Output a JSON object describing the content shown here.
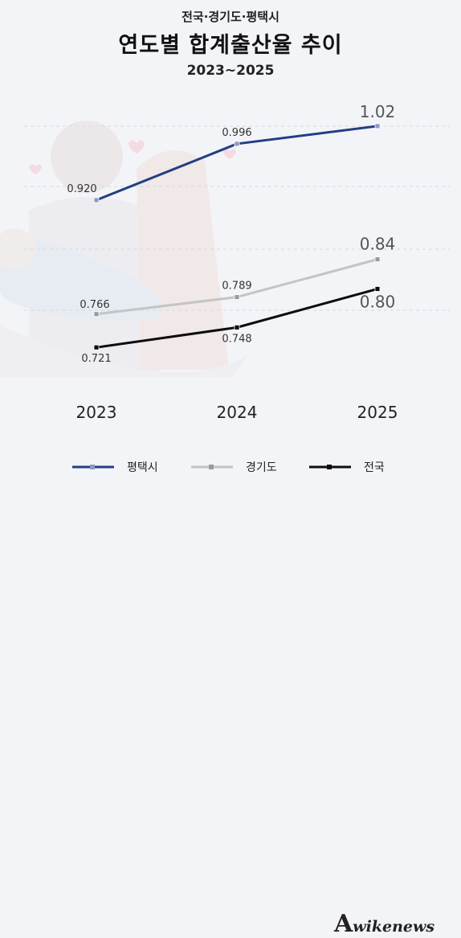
{
  "header": {
    "supertitle": "전국·경기도·평택시",
    "title": "연도별 합계출산율 추이",
    "subtitle": "2023~2025"
  },
  "chart_data": {
    "type": "line",
    "x": [
      "2023",
      "2024",
      "2025"
    ],
    "ylim": [
      0.68,
      1.06
    ],
    "grid": true,
    "legend_position": "bottom",
    "series": [
      {
        "name": "평택시",
        "values": [
          0.92,
          0.996,
          1.02
        ],
        "labels": [
          "0.920",
          "0.996",
          "1.02"
        ],
        "color": "#233f83",
        "marker_color": "#8a9ac0"
      },
      {
        "name": "경기도",
        "values": [
          0.766,
          0.789,
          0.84
        ],
        "labels": [
          "0.766",
          "0.789",
          "0.84"
        ],
        "color": "#c4c4c4",
        "marker_color": "#9a9a9a"
      },
      {
        "name": "전국",
        "values": [
          0.721,
          0.748,
          0.8
        ],
        "labels": [
          "0.721",
          "0.748",
          "0.80"
        ],
        "color": "#0d0d0d",
        "marker_color": "#0d0d0d"
      }
    ]
  },
  "watermark": {
    "big": "A",
    "text": "wikenews"
  }
}
